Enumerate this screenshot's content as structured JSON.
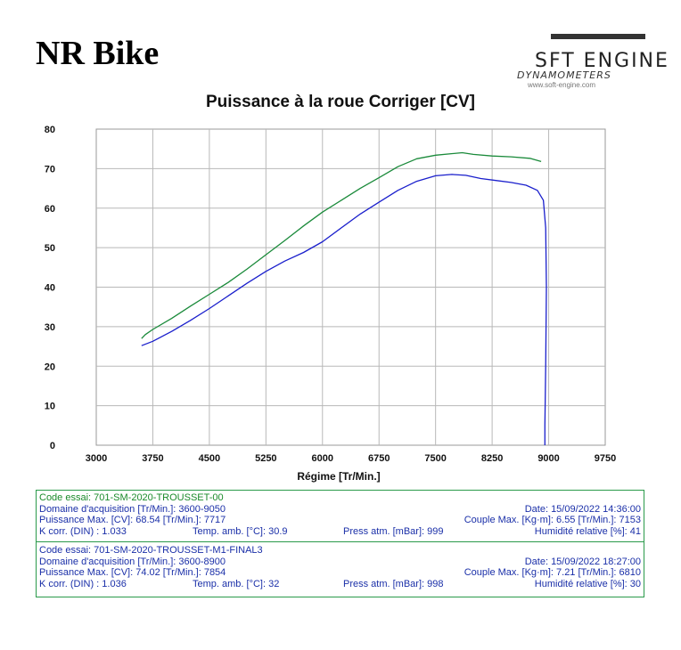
{
  "header": {
    "brand": "NR Bike",
    "logo": {
      "word": "SFT ENGINE",
      "subtitle": "DYNAMOMETERS",
      "url": "www.soft-engine.com"
    }
  },
  "colors": {
    "series1": "#1a1fcc",
    "series2": "#1a8a3a",
    "grid": "#b8b8b8",
    "info_border": "#2a9a4a",
    "info_text": "#1a2fa8"
  },
  "chart_data": {
    "type": "line",
    "title": "Puissance à la roue Corriger [CV]",
    "xlabel": "Régime [Tr/Min.]",
    "ylabel": "",
    "xlim": [
      3000,
      9750
    ],
    "ylim": [
      0,
      80
    ],
    "xticks": [
      3000,
      3750,
      4500,
      5250,
      6000,
      6750,
      7500,
      8250,
      9000,
      9750
    ],
    "yticks": [
      0,
      10,
      20,
      30,
      40,
      50,
      60,
      70,
      80
    ],
    "grid": true,
    "series": [
      {
        "name": "701-SM-2020-TROUSSET-00",
        "color": "#1a1fcc",
        "x": [
          3600,
          3750,
          4000,
          4250,
          4500,
          4750,
          5000,
          5250,
          5500,
          5750,
          6000,
          6250,
          6500,
          6750,
          7000,
          7250,
          7500,
          7717,
          7900,
          8100,
          8300,
          8500,
          8700,
          8850,
          8930,
          8960,
          8970,
          8960,
          8950,
          8950
        ],
        "values": [
          25.2,
          26.3,
          28.8,
          31.6,
          34.6,
          37.8,
          41.0,
          44.0,
          46.6,
          48.8,
          51.5,
          55.0,
          58.5,
          61.5,
          64.5,
          66.8,
          68.2,
          68.54,
          68.3,
          67.5,
          67.0,
          66.5,
          65.8,
          64.5,
          62.0,
          55.0,
          40.0,
          20.0,
          5.0,
          0.0
        ]
      },
      {
        "name": "701-SM-2020-TROUSSET-M1-FINAL3",
        "color": "#1a8a3a",
        "x": [
          3600,
          3650,
          3750,
          4000,
          4250,
          4500,
          4750,
          5000,
          5250,
          5500,
          5750,
          6000,
          6250,
          6500,
          6750,
          7000,
          7250,
          7500,
          7854,
          8000,
          8250,
          8500,
          8750,
          8900
        ],
        "values": [
          27.0,
          28.0,
          29.3,
          32.1,
          35.2,
          38.2,
          41.2,
          44.6,
          48.2,
          51.8,
          55.5,
          59.0,
          62.0,
          65.0,
          67.7,
          70.5,
          72.5,
          73.4,
          74.02,
          73.6,
          73.2,
          73.0,
          72.6,
          71.8
        ]
      }
    ]
  },
  "info": {
    "run1": {
      "code": "Code essai: 701-SM-2020-TROUSSET-00",
      "domain": "Domaine d'acquisition [Tr/Min.]: 3600-9050",
      "date": "Date: 15/09/2022  14:36:00",
      "power_max": "Puissance Max. [CV]: 68.54  [Tr/Min.]: 7717",
      "torque_max": "Couple Max. [Kg·m]: 6.55  [Tr/Min.]: 7153",
      "k_corr": "K corr. (DIN) : 1.033",
      "temp": "Temp. amb. [°C]: 30.9",
      "press": "Press atm. [mBar]: 999",
      "humidity": "Humidité relative [%]: 41"
    },
    "run2": {
      "code": "Code essai: 701-SM-2020-TROUSSET-M1-FINAL3",
      "domain": "Domaine d'acquisition [Tr/Min.]: 3600-8900",
      "date": "Date: 15/09/2022  18:27:00",
      "power_max": "Puissance Max. [CV]: 74.02  [Tr/Min.]: 7854",
      "torque_max": "Couple Max. [Kg·m]: 7.21  [Tr/Min.]: 6810",
      "k_corr": "K corr. (DIN) : 1.036",
      "temp": "Temp. amb. [°C]: 32",
      "press": "Press atm. [mBar]: 998",
      "humidity": "Humidité relative [%]: 30"
    }
  }
}
